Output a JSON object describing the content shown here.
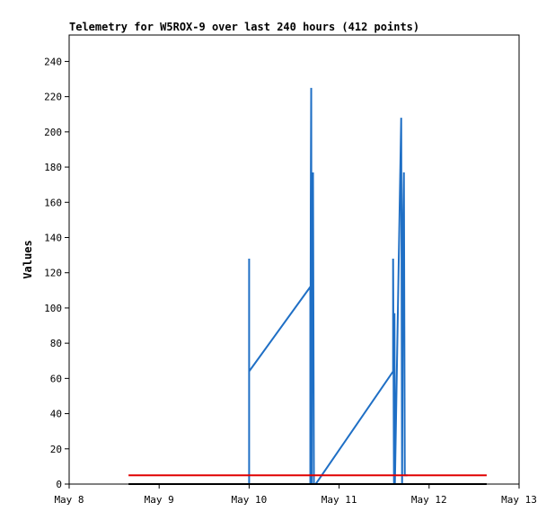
{
  "chart_data": {
    "type": "line",
    "title": "Telemetry for W5ROX-9 over last 240 hours (412 points)",
    "y_label": "Values",
    "xlim": [
      0,
      5
    ],
    "xticks": [
      {
        "value": 0,
        "label": "May 8"
      },
      {
        "value": 1,
        "label": "May 9"
      },
      {
        "value": 2,
        "label": "May 10"
      },
      {
        "value": 3,
        "label": "May 11"
      },
      {
        "value": 4,
        "label": "May 12"
      },
      {
        "value": 5,
        "label": "May 13"
      }
    ],
    "ylim": [
      0,
      255
    ],
    "yticks": [
      0,
      20,
      40,
      60,
      80,
      100,
      120,
      140,
      160,
      180,
      200,
      220,
      240
    ],
    "series": [
      {
        "color": "#1f6fc5",
        "x": [
          2.0,
          2.0,
          2.0,
          2.68,
          2.68,
          2.685,
          2.69,
          2.695,
          2.7,
          2.71,
          2.72,
          2.74,
          3.6,
          3.6,
          3.61,
          3.615,
          3.62,
          3.69,
          3.7,
          3.71,
          3.72,
          3.73,
          3.76
        ],
        "values": [
          0,
          128,
          64,
          112,
          0,
          160,
          225,
          0,
          128,
          177,
          0,
          0,
          64,
          128,
          0,
          97,
          0,
          208,
          0,
          145,
          177,
          5,
          5
        ]
      },
      {
        "color": "#e00000",
        "x": [
          0.66,
          4.64
        ],
        "values": [
          5,
          5
        ]
      },
      {
        "color": "#000000",
        "x": [
          0.66,
          4.64
        ],
        "values": [
          0,
          0
        ]
      }
    ]
  }
}
